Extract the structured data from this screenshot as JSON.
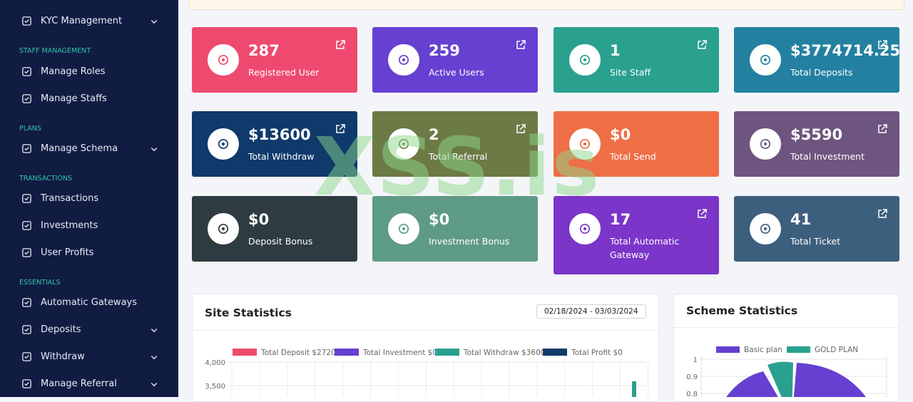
{
  "sidebar": [
    {
      "type": "item",
      "label": "KYC Management",
      "submenu": true
    },
    {
      "type": "section",
      "label": "STAFF MANAGEMENT"
    },
    {
      "type": "item",
      "label": "Manage Roles",
      "submenu": false
    },
    {
      "type": "item",
      "label": "Manage Staffs",
      "submenu": false
    },
    {
      "type": "section",
      "label": "PLANS"
    },
    {
      "type": "item",
      "label": "Manage Schema",
      "submenu": true
    },
    {
      "type": "section",
      "label": "TRANSACTIONS"
    },
    {
      "type": "item",
      "label": "Transactions",
      "submenu": false
    },
    {
      "type": "item",
      "label": "Investments",
      "submenu": false
    },
    {
      "type": "item",
      "label": "User Profits",
      "submenu": false
    },
    {
      "type": "section",
      "label": "ESSENTIALS"
    },
    {
      "type": "item",
      "label": "Automatic Gateways",
      "submenu": false
    },
    {
      "type": "item",
      "label": "Deposits",
      "submenu": true
    },
    {
      "type": "item",
      "label": "Withdraw",
      "submenu": true
    },
    {
      "type": "item",
      "label": "Manage Referral",
      "submenu": true
    }
  ],
  "cards": [
    {
      "value": "287",
      "label": "Registered User",
      "color": "#ee4a6f",
      "link": true
    },
    {
      "value": "259",
      "label": "Active Users",
      "color": "#6640d1",
      "link": true
    },
    {
      "value": "1",
      "label": "Site Staff",
      "color": "#2aa08f",
      "link": true
    },
    {
      "value": "$3774714.25",
      "label": "Total Deposits",
      "color": "#2380a0",
      "link": true
    },
    {
      "value": "$13600",
      "label": "Total Withdraw",
      "color": "#0f3a6b",
      "link": true
    },
    {
      "value": "2",
      "label": "Total Referral",
      "color": "#6c7a45",
      "link": true
    },
    {
      "value": "$0",
      "label": "Total Send",
      "color": "#ef6e46",
      "link": false
    },
    {
      "value": "$5590",
      "label": "Total Investment",
      "color": "#6e5580",
      "link": true
    },
    {
      "value": "$0",
      "label": "Deposit Bonus",
      "color": "#2e3b40",
      "link": false
    },
    {
      "value": "$0",
      "label": "Investment Bonus",
      "color": "#5e9b87",
      "link": false
    },
    {
      "value": "17",
      "label": "Total Automatic Gateway",
      "color": "#7b35c9",
      "link": true
    },
    {
      "value": "41",
      "label": "Total Ticket",
      "color": "#3d5f7e",
      "link": true
    }
  ],
  "watermark": "XSS.is",
  "site_statistics": {
    "title": "Site Statistics",
    "date_range": "02/18/2024 - 03/03/2024",
    "legend": [
      {
        "name": "Total Deposit $2720",
        "color": "#ee4a6f"
      },
      {
        "name": "Total Investment $0",
        "color": "#6640d1"
      },
      {
        "name": "Total Withdraw $3600",
        "color": "#2aa08f"
      },
      {
        "name": "Total Profit $0",
        "color": "#0f3a6b"
      }
    ],
    "yticks": [
      {
        "value": 4000,
        "label": "4,000"
      },
      {
        "value": 3500,
        "label": "3,500"
      }
    ]
  },
  "scheme_statistics": {
    "title": "Scheme Statistics",
    "legend": [
      {
        "name": "Basic plan",
        "color": "#6640d1"
      },
      {
        "name": "GOLD PLAN",
        "color": "#2aa08f"
      }
    ],
    "yticks": [
      1,
      0.9,
      0.8
    ]
  }
}
